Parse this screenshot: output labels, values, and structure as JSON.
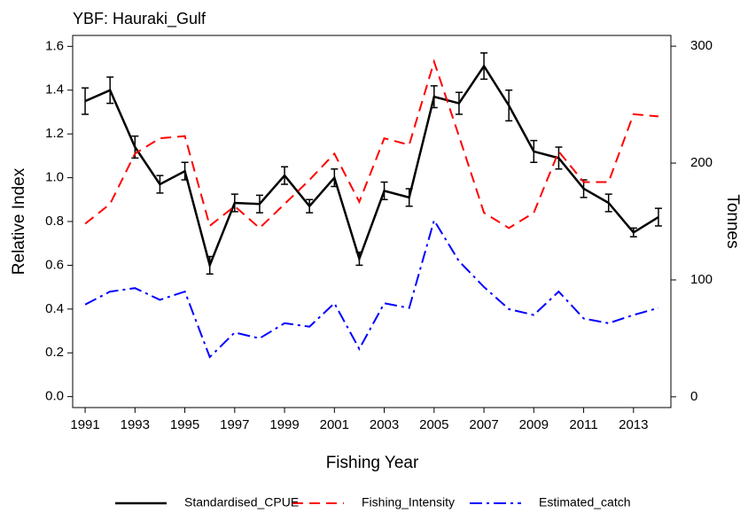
{
  "chart_data": {
    "type": "line",
    "title": "YBF: Hauraki_Gulf",
    "xlabel": "Fishing Year",
    "ylabel": "Relative Index",
    "y2label": "Tonnes",
    "x": [
      1991,
      1992,
      1993,
      1994,
      1995,
      1996,
      1997,
      1998,
      1999,
      2000,
      2001,
      2002,
      2003,
      2004,
      2005,
      2006,
      2007,
      2008,
      2009,
      2010,
      2011,
      2012,
      2013,
      2014
    ],
    "xlim": [
      1990.5,
      2014.5
    ],
    "xticks": [
      1991,
      1993,
      1995,
      1997,
      1999,
      2001,
      2003,
      2005,
      2007,
      2009,
      2011,
      2013
    ],
    "ylim": [
      -0.05,
      1.65
    ],
    "yticks": [
      {
        "value": 0,
        "label": "0.0"
      },
      0.2,
      0.4,
      0.6,
      0.8,
      {
        "value": 1,
        "label": "1.0"
      },
      1.2,
      1.4,
      1.6
    ],
    "y2lim": [
      -9.2,
      309.2
    ],
    "y2ticks": [
      0,
      100,
      200,
      300
    ],
    "series": [
      {
        "name": "Standardised_CPUE",
        "color": "#000000",
        "style": "solid",
        "values": [
          1.35,
          1.4,
          1.14,
          0.97,
          1.03,
          0.6,
          0.885,
          0.88,
          1.01,
          0.87,
          1.0,
          0.63,
          0.94,
          0.91,
          1.37,
          1.34,
          1.51,
          1.33,
          1.12,
          1.09,
          0.95,
          0.885,
          0.75,
          0.82
        ],
        "errors": [
          0.06,
          0.06,
          0.05,
          0.04,
          0.04,
          0.04,
          0.04,
          0.04,
          0.04,
          0.03,
          0.04,
          0.03,
          0.04,
          0.04,
          0.05,
          0.05,
          0.06,
          0.07,
          0.05,
          0.05,
          0.04,
          0.04,
          0.02,
          0.04
        ]
      },
      {
        "name": "Fishing_Intensity",
        "color": "#ff0000",
        "style": "dashed",
        "values": [
          0.79,
          0.88,
          1.11,
          1.18,
          1.19,
          0.78,
          0.87,
          0.77,
          0.88,
          0.99,
          1.11,
          0.89,
          1.18,
          1.15,
          1.53,
          1.19,
          0.84,
          0.77,
          0.84,
          1.12,
          0.98,
          0.98,
          1.29,
          1.28
        ]
      },
      {
        "name": "Estimated_catch",
        "color": "#0000ff",
        "style": "dashdot",
        "axis": "y2",
        "values": [
          79,
          90,
          93,
          83,
          90,
          34,
          55,
          50,
          63,
          60,
          80,
          41,
          80,
          76,
          151,
          116,
          94,
          75,
          70,
          90,
          67,
          63,
          70,
          76
        ]
      }
    ]
  }
}
